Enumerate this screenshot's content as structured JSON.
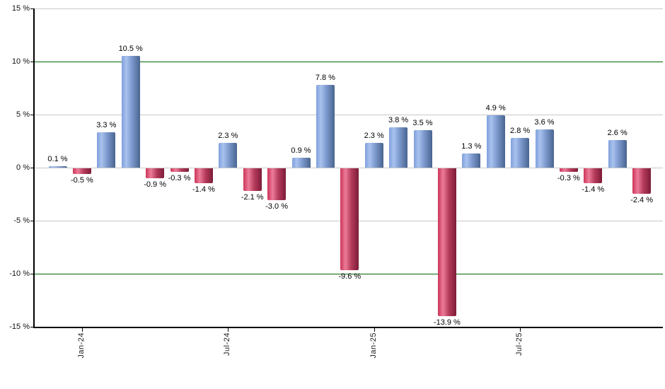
{
  "chart_data": {
    "type": "bar",
    "title": "",
    "description": "Monthly percentage returns bar chart, blue for positive months and red for negative months",
    "ylim": [
      -15,
      15
    ],
    "y_tick_interval": 5,
    "y_tick_values": [
      15,
      10,
      5,
      0,
      -5,
      -10,
      -15
    ],
    "y_tick_labels": [
      "15 %",
      "10 %",
      "5 %",
      "0 %",
      "-5 %",
      "-10 %",
      "-15 %"
    ],
    "gridline_values": [
      15,
      10,
      5,
      0,
      -5,
      -10
    ],
    "threshold_values": [
      10,
      -10
    ],
    "x_tick_labels": [
      "Jan-24",
      "Jul-24",
      "Jan-25",
      "Jul-25"
    ],
    "x_tick_bar_indices": [
      1,
      7,
      13,
      19
    ],
    "legend": null,
    "grid": true,
    "bars": [
      {
        "value": 0.1,
        "label": "0.1 %"
      },
      {
        "value": -0.5,
        "label": "-0.5 %"
      },
      {
        "value": 3.3,
        "label": "3.3 %"
      },
      {
        "value": 10.5,
        "label": "10.5 %"
      },
      {
        "value": -0.9,
        "label": "-0.9 %"
      },
      {
        "value": -0.3,
        "label": "-0.3 %"
      },
      {
        "value": -1.4,
        "label": "-1.4 %"
      },
      {
        "value": 2.3,
        "label": "2.3 %"
      },
      {
        "value": -2.1,
        "label": "-2.1 %"
      },
      {
        "value": -3.0,
        "label": "-3.0 %"
      },
      {
        "value": 0.9,
        "label": "0.9 %"
      },
      {
        "value": 7.8,
        "label": "7.8 %"
      },
      {
        "value": -9.6,
        "label": "-9.6 %"
      },
      {
        "value": 2.3,
        "label": "2.3 %"
      },
      {
        "value": 3.8,
        "label": "3.8 %"
      },
      {
        "value": 3.5,
        "label": "3.5 %"
      },
      {
        "value": -13.9,
        "label": "-13.9 %"
      },
      {
        "value": 1.3,
        "label": "1.3 %"
      },
      {
        "value": 4.9,
        "label": "4.9 %"
      },
      {
        "value": 2.8,
        "label": "2.8 %"
      },
      {
        "value": 3.6,
        "label": "3.6 %"
      },
      {
        "value": -0.3,
        "label": "-0.3 %"
      },
      {
        "value": -1.4,
        "label": "-1.4 %"
      },
      {
        "value": 2.6,
        "label": "2.6 %"
      },
      {
        "value": -2.4,
        "label": "-2.4 %"
      }
    ],
    "colors": {
      "positive_bar": "#7d9ace",
      "negative_bar": "#c43a5e",
      "gridline": "#c8c8c8",
      "threshold_line": "#006600",
      "axis": "#000000",
      "label_text": "#000000"
    }
  }
}
